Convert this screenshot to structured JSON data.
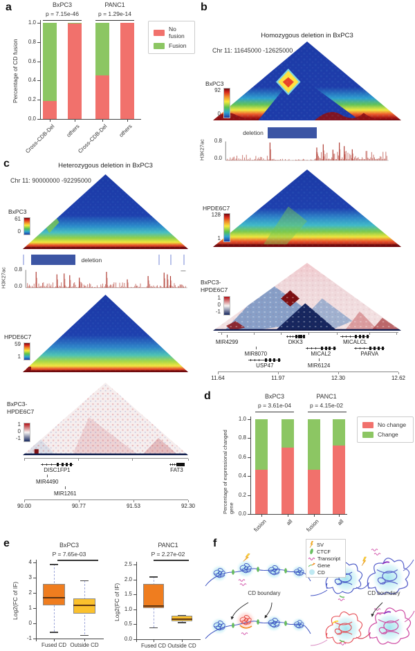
{
  "panel_a": {
    "letter": "a"
  },
  "panel_d": {
    "letter": "d"
  },
  "panel_e": {
    "letter": "e"
  },
  "panel_b": {
    "letter": "b",
    "title": "Homozygous deletion in BxPC3",
    "region": "Chr 11: 11645000 -12625000",
    "map1": {
      "name": "BxPC3",
      "max": "92",
      "min": "0"
    },
    "map2": {
      "name": "HPDE6C7",
      "max": "128",
      "min": "1"
    },
    "map3": {
      "name1": "BxPC3-",
      "name2": "HPDE6C7",
      "max": "1",
      "mid": "0",
      "min": "-1"
    },
    "h3k27ac": {
      "label": "H3K27ac",
      "max": "0.8",
      "min": "0.0"
    },
    "deletion": {
      "label": "deletion",
      "f0": 0.29,
      "f1": 0.55,
      "label_side": "left"
    },
    "gene_rows": [
      [
        {
          "name": "MIR4299",
          "f": 0.05,
          "glyph": "tick"
        },
        {
          "name": "DKK3",
          "f": 0.43,
          "glyph": "model",
          "span": 0.1
        },
        {
          "name": "MICALCL",
          "f": 0.76,
          "glyph": "model",
          "span": 0.16
        }
      ],
      [
        {
          "name": "MIR8070",
          "f": 0.21,
          "glyph": "tick"
        },
        {
          "name": "MICAL2",
          "f": 0.57,
          "glyph": "model",
          "span": 0.17
        },
        {
          "name": "PARVA",
          "f": 0.84,
          "glyph": "model",
          "span": 0.17
        }
      ],
      [
        {
          "name": "USP47",
          "f": 0.26,
          "glyph": "model",
          "span": 0.18
        },
        {
          "name": "MIR6124",
          "f": 0.56,
          "glyph": "tick"
        }
      ]
    ],
    "axis_ticks": [
      "11.64",
      "11.97",
      "12.30",
      "12.62"
    ]
  },
  "panel_c": {
    "letter": "c",
    "title": "Heterozygous deletion in BxPC3",
    "region": "Chr 11: 90000000 -92295000",
    "map1": {
      "name": "BxPC3",
      "max": "61",
      "min": "0"
    },
    "map2": {
      "name": "HPDE6C7",
      "max": "59",
      "min": "1"
    },
    "map3": {
      "name1": "BxPC3-",
      "name2": "HPDE6C7",
      "max": "1",
      "mid": "0",
      "min": "-1"
    },
    "h3k27ac": {
      "label": "H3K27ac",
      "max": "0.8",
      "min": "0.0"
    },
    "deletion": {
      "label": "deletion",
      "f0": 0.05,
      "f1": 0.32,
      "label_side": "right",
      "ticks": [
        0.0,
        0.82,
        0.89,
        0.97
      ]
    },
    "gene_rows": [
      [
        {
          "name": "DISC1FP1",
          "f": 0.2,
          "glyph": "model",
          "span": 0.2
        },
        {
          "name": "FAT3",
          "f": 0.93,
          "glyph": "model",
          "span": 0.09
        }
      ],
      [
        {
          "name": "MIR4490",
          "f": 0.14,
          "glyph": "tick"
        }
      ],
      [
        {
          "name": "MIR1261",
          "f": 0.25,
          "glyph": "tick"
        }
      ]
    ],
    "axis_ticks": [
      "90.00",
      "90.77",
      "91.53",
      "92.30"
    ]
  },
  "panel_f": {
    "letter": "f",
    "legend": [
      {
        "label": "SV"
      },
      {
        "label": "CTCF"
      },
      {
        "label": "Transcript"
      },
      {
        "label": "Gene"
      },
      {
        "label": "CD"
      }
    ],
    "cd_boundary_left": "CD boundary",
    "cd_boundary_right": "CD boundary"
  },
  "colors": {
    "no_fusion": "#f1716c",
    "fusion": "#8cc663",
    "no_change": "#f1716c",
    "change": "#8cc663",
    "box_fused": "#ef7d1f",
    "box_outside": "#fbc12d",
    "deletion_bar": "#3c55a4",
    "h3k27ac_track": "#b23a30",
    "heatmap_low": "#1c3aa6",
    "heatmap_high": "#6e0a0e",
    "diff_positive": "#b31217",
    "diff_negative": "#16265e"
  },
  "chart_data": [
    {
      "id": "a",
      "type": "bar",
      "stacked": true,
      "group_titles": [
        "BxPC3",
        "PANC1"
      ],
      "group_pvalues": [
        "p = 7.15e-46",
        "p = 1.29e-14"
      ],
      "categories": [
        "Cross-CDB-Del",
        "others",
        "Cross-CDB-Del",
        "others"
      ],
      "series": [
        {
          "name": "No fusion",
          "color": "#f1716c",
          "values": [
            0.19,
            0.99,
            0.455,
            1.0
          ]
        },
        {
          "name": "Fusion",
          "color": "#8cc663",
          "values": [
            0.81,
            0.01,
            0.545,
            0.0
          ]
        }
      ],
      "ylabel": "Percentage of CD fusion",
      "ylim": [
        0,
        1
      ],
      "yticks": [
        "1.0",
        "0.8",
        "0.6",
        "0.4",
        "0.2",
        "0.0"
      ],
      "legend_position": "right",
      "grid": false
    },
    {
      "id": "d",
      "type": "bar",
      "stacked": true,
      "group_titles": [
        "BxPC3",
        "PANC1"
      ],
      "group_pvalues": [
        "p = 3.61e-04",
        "p = 4.15e-02"
      ],
      "categories": [
        "fusion",
        "all",
        "fusion",
        "all"
      ],
      "series": [
        {
          "name": "No change",
          "color": "#f1716c",
          "values": [
            0.465,
            0.7,
            0.465,
            0.72
          ]
        },
        {
          "name": "Change",
          "color": "#8cc663",
          "values": [
            0.535,
            0.3,
            0.535,
            0.28
          ]
        }
      ],
      "ylabel": "Percentage of expressional changed gene",
      "ylim": [
        0,
        1
      ],
      "yticks": [
        "1.0",
        "0.8",
        "0.6",
        "0.4",
        "0.2",
        "0.0"
      ],
      "legend_position": "right",
      "grid": false
    },
    {
      "id": "e1",
      "type": "box",
      "title": "BxPC3",
      "pvalue": "P = 7.65e-03",
      "ylabel": "Log2(FC of IF)",
      "ylim": [
        -1,
        4
      ],
      "yticks": [
        "4",
        "3",
        "2",
        "1",
        "0",
        "-1"
      ],
      "boxes": [
        {
          "label": "Fused CD",
          "color": "#ef7d1f",
          "low": -0.55,
          "q1": 1.2,
          "median": 1.7,
          "q3": 2.6,
          "high": 3.9
        },
        {
          "label": "Outside CD",
          "color": "#fbc12d",
          "low": -0.75,
          "q1": 0.65,
          "median": 1.18,
          "q3": 1.65,
          "high": 2.82
        }
      ]
    },
    {
      "id": "e2",
      "type": "box",
      "title": "PANC1",
      "pvalue": "P = 2.27e-02",
      "ylabel": "Log2(FC of IF)",
      "ylim": [
        0,
        2.5
      ],
      "yticks": [
        "2.5",
        "2.0",
        "1.5",
        "1.0",
        "0.5",
        "0.0"
      ],
      "boxes": [
        {
          "label": "Fused CD",
          "color": "#ef7d1f",
          "low": 0.4,
          "q1": 1.05,
          "median": 1.12,
          "q3": 1.86,
          "high": 2.1
        },
        {
          "label": "Outside CD",
          "color": "#fbc12d",
          "low": 0.57,
          "q1": 0.6,
          "median": 0.66,
          "q3": 0.78,
          "high": 0.82
        }
      ]
    }
  ]
}
